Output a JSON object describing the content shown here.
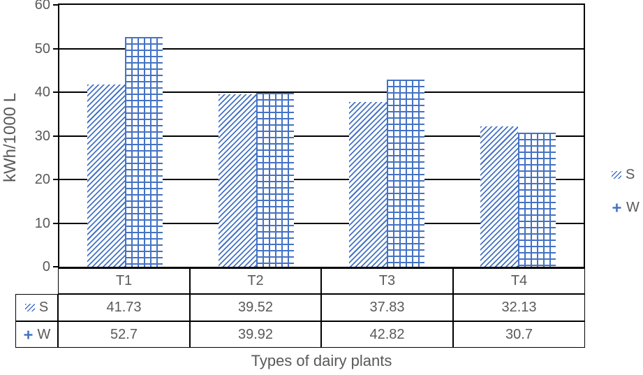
{
  "chart_data": {
    "type": "bar",
    "title": "",
    "categories": [
      "T1",
      "T2",
      "T3",
      "T4"
    ],
    "series": [
      {
        "name": "S",
        "pattern": "diagonal-hatch",
        "values": [
          41.73,
          39.52,
          37.83,
          32.13
        ]
      },
      {
        "name": "W",
        "pattern": "grid-crosshatch",
        "values": [
          52.7,
          39.92,
          42.82,
          30.7
        ]
      }
    ],
    "xlabel": "Types of dairy plants",
    "ylabel": "kWh/1000 L",
    "ylim": [
      0,
      60
    ],
    "yticks": [
      0,
      10,
      20,
      30,
      40,
      50,
      60
    ],
    "grid": true,
    "legend_position": "right",
    "legend_items": [
      {
        "label": "S",
        "swatch": "diagonal-hatch"
      },
      {
        "label": "W",
        "swatch": "plus"
      }
    ],
    "data_table_shown": true
  },
  "colors": {
    "series_blue": "#4472C4",
    "axis_line": "#000000",
    "text_gray": "#595959",
    "background": "#FFFFFF"
  }
}
